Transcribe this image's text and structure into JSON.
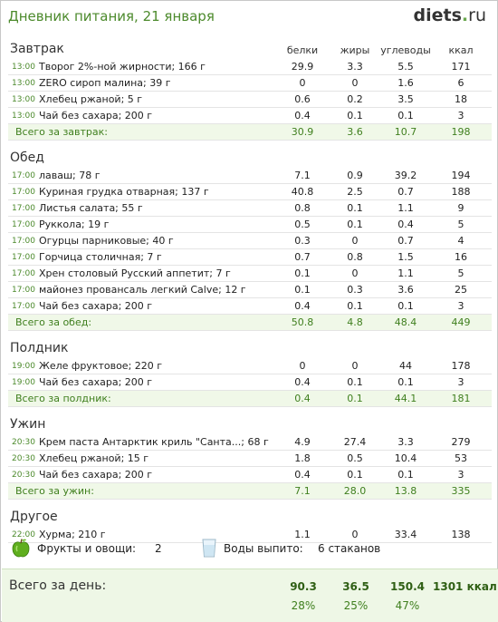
{
  "title": "Дневник питания, 21 января",
  "logo": {
    "main": "diets",
    "dot": ".",
    "tld": "ru"
  },
  "columns": {
    "protein": "белки",
    "fat": "жиры",
    "carbs": "углеводы",
    "kcal": "ккал"
  },
  "meals": [
    {
      "name": "Завтрак",
      "items": [
        {
          "time": "13:00",
          "food": "Творог 2%-ной жирности; 166 г",
          "protein": "29.9",
          "fat": "3.3",
          "carbs": "5.5",
          "kcal": "171"
        },
        {
          "time": "13:00",
          "food": "ZERO сироп малина; 39 г",
          "protein": "0",
          "fat": "0",
          "carbs": "1.6",
          "kcal": "6"
        },
        {
          "time": "13:00",
          "food": "Хлебец ржаной; 5 г",
          "protein": "0.6",
          "fat": "0.2",
          "carbs": "3.5",
          "kcal": "18"
        },
        {
          "time": "13:00",
          "food": "Чай без сахара; 200 г",
          "protein": "0.4",
          "fat": "0.1",
          "carbs": "0.1",
          "kcal": "3"
        }
      ],
      "total": {
        "label": "Всего за завтрак:",
        "protein": "30.9",
        "fat": "3.6",
        "carbs": "10.7",
        "kcal": "198"
      }
    },
    {
      "name": "Обед",
      "items": [
        {
          "time": "17:00",
          "food": "лаваш; 78 г",
          "protein": "7.1",
          "fat": "0.9",
          "carbs": "39.2",
          "kcal": "194"
        },
        {
          "time": "17:00",
          "food": "Куриная грудка отварная; 137 г",
          "protein": "40.8",
          "fat": "2.5",
          "carbs": "0.7",
          "kcal": "188"
        },
        {
          "time": "17:00",
          "food": "Листья салата; 55 г",
          "protein": "0.8",
          "fat": "0.1",
          "carbs": "1.1",
          "kcal": "9"
        },
        {
          "time": "17:00",
          "food": "Руккола; 19 г",
          "protein": "0.5",
          "fat": "0.1",
          "carbs": "0.4",
          "kcal": "5"
        },
        {
          "time": "17:00",
          "food": "Огурцы парниковые; 40 г",
          "protein": "0.3",
          "fat": "0",
          "carbs": "0.7",
          "kcal": "4"
        },
        {
          "time": "17:00",
          "food": "Горчица столичная; 7 г",
          "protein": "0.7",
          "fat": "0.8",
          "carbs": "1.5",
          "kcal": "16"
        },
        {
          "time": "17:00",
          "food": "Хрен столовый Русский аппетит; 7 г",
          "protein": "0.1",
          "fat": "0",
          "carbs": "1.1",
          "kcal": "5"
        },
        {
          "time": "17:00",
          "food": "майонез провансаль легкий Calve; 12 г",
          "protein": "0.1",
          "fat": "0.3",
          "carbs": "3.6",
          "kcal": "25"
        },
        {
          "time": "17:00",
          "food": "Чай без сахара; 200 г",
          "protein": "0.4",
          "fat": "0.1",
          "carbs": "0.1",
          "kcal": "3"
        }
      ],
      "total": {
        "label": "Всего за обед:",
        "protein": "50.8",
        "fat": "4.8",
        "carbs": "48.4",
        "kcal": "449"
      }
    },
    {
      "name": "Полдник",
      "items": [
        {
          "time": "19:00",
          "food": "Желе фруктовое; 220 г",
          "protein": "0",
          "fat": "0",
          "carbs": "44",
          "kcal": "178"
        },
        {
          "time": "19:00",
          "food": "Чай без сахара; 200 г",
          "protein": "0.4",
          "fat": "0.1",
          "carbs": "0.1",
          "kcal": "3"
        }
      ],
      "total": {
        "label": "Всего за полдник:",
        "protein": "0.4",
        "fat": "0.1",
        "carbs": "44.1",
        "kcal": "181"
      }
    },
    {
      "name": "Ужин",
      "items": [
        {
          "time": "20:30",
          "food": "Крем паста Антарктик криль \"Санта...; 68 г",
          "protein": "4.9",
          "fat": "27.4",
          "carbs": "3.3",
          "kcal": "279"
        },
        {
          "time": "20:30",
          "food": "Хлебец ржаной; 15 г",
          "protein": "1.8",
          "fat": "0.5",
          "carbs": "10.4",
          "kcal": "53"
        },
        {
          "time": "20:30",
          "food": "Чай без сахара; 200 г",
          "protein": "0.4",
          "fat": "0.1",
          "carbs": "0.1",
          "kcal": "3"
        }
      ],
      "total": {
        "label": "Всего за ужин:",
        "protein": "7.1",
        "fat": "28.0",
        "carbs": "13.8",
        "kcal": "335"
      }
    },
    {
      "name": "Другое",
      "items": [
        {
          "time": "22:00",
          "food": "Хурма; 210 г",
          "protein": "1.1",
          "fat": "0",
          "carbs": "33.4",
          "kcal": "138"
        }
      ],
      "total": null
    }
  ],
  "extras": {
    "fruit_label": "Фрукты и овощи:",
    "fruit_count": "2",
    "water_label": "Воды выпито:",
    "water_value": "6 стаканов",
    "icons": {
      "fruit": "green-apple-icon",
      "water": "water-glass-icon"
    }
  },
  "day_total": {
    "label": "Всего за день:",
    "protein": "90.3",
    "fat": "36.5",
    "carbs": "150.4",
    "kcal": "1301 ккал",
    "protein_pct": "28%",
    "fat_pct": "25%",
    "carbs_pct": "47%"
  },
  "colors": {
    "accent": "#4c8a2c",
    "total_bg": "#f0f8e8",
    "day_bg": "#eef7e6"
  }
}
